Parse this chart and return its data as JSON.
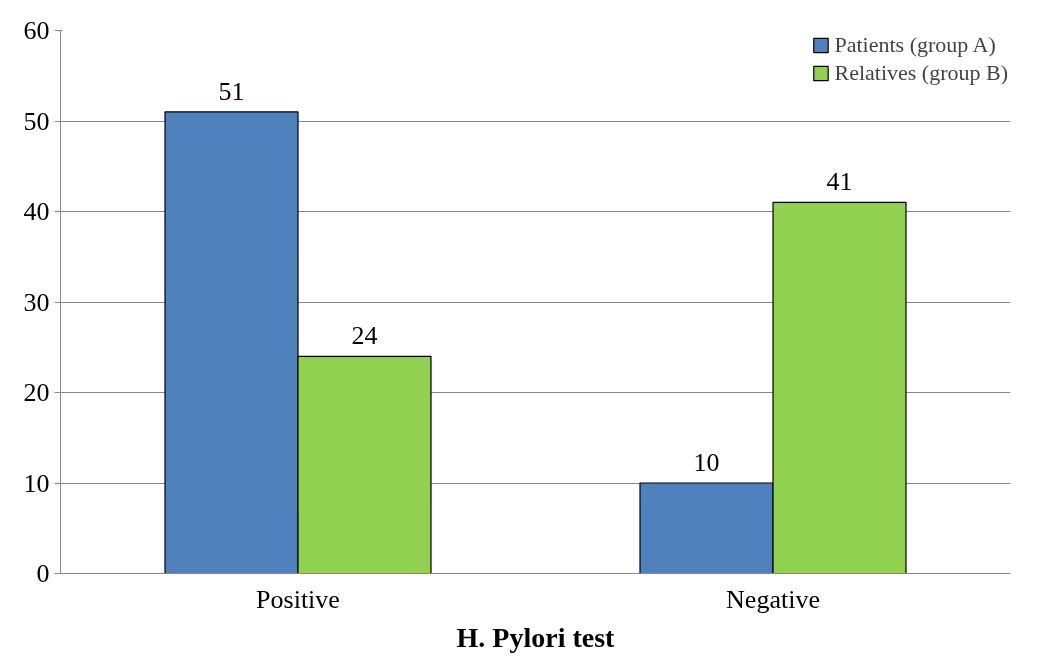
{
  "chart_data": {
    "type": "bar",
    "xlabel": "H. Pylori test",
    "categories": [
      "Positive",
      "Negative"
    ],
    "series": [
      {
        "name": "Patients (group A)",
        "color": "#4f81bd",
        "values": [
          51,
          10
        ]
      },
      {
        "name": "Relatives (group B)",
        "color": "#92d050",
        "values": [
          24,
          41
        ]
      }
    ],
    "ylim": [
      0,
      60
    ],
    "yticks": [
      0,
      10,
      20,
      30,
      40,
      50,
      60
    ],
    "grid": "y",
    "legend": "top right",
    "data_labels": true
  }
}
